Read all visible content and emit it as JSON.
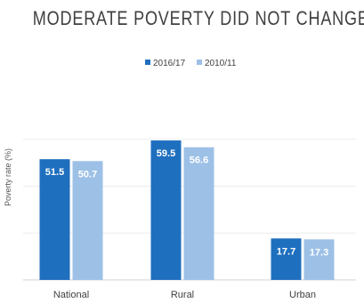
{
  "chart_data": {
    "type": "bar",
    "title": "MODERATE POVERTY DID NOT CHANGE",
    "ylabel": "Poverty rate (%)",
    "xlabel": "",
    "categories": [
      "National",
      "Rural",
      "Urban"
    ],
    "series": [
      {
        "name": "2016/17",
        "values": [
          51.5,
          59.5,
          17.7
        ],
        "color": "#1f6fbf"
      },
      {
        "name": "2010/11",
        "values": [
          50.7,
          56.6,
          17.3
        ],
        "color": "#9dc0e6"
      }
    ],
    "ylim": [
      0,
      80
    ],
    "grid": true,
    "legend_position": "top-center",
    "data_labels": true
  }
}
